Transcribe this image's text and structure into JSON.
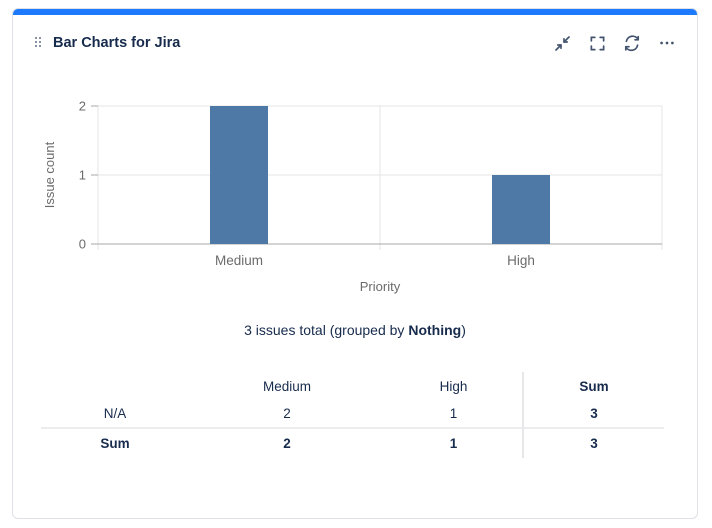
{
  "header": {
    "title": "Bar Charts for Jira",
    "actions": {
      "collapse": "Collapse",
      "fullscreen": "Full screen",
      "refresh": "Refresh",
      "more": "More options"
    }
  },
  "chart_data": {
    "type": "bar",
    "categories": [
      "Medium",
      "High"
    ],
    "values": [
      2,
      1
    ],
    "title": "",
    "xlabel": "Priority",
    "ylabel": "Issue count",
    "ylim": [
      0,
      2
    ],
    "yticks": [
      0,
      1,
      2
    ],
    "grid": true,
    "legend": false,
    "bar_color": "#4e79a7"
  },
  "summary": {
    "prefix": "3 issues total (grouped by ",
    "group_by": "Nothing",
    "suffix": ")"
  },
  "table": {
    "columns": [
      "",
      "Medium",
      "High",
      "Sum"
    ],
    "rows": [
      {
        "label": "N/A",
        "values": [
          "2",
          "1",
          "3"
        ]
      },
      {
        "label": "Sum",
        "values": [
          "2",
          "1",
          "3"
        ]
      }
    ]
  },
  "colors": {
    "accent": "#1d7afc",
    "bar": "#4e79a7",
    "text": "#172b4d",
    "icon": "#44546f",
    "chart_text": "#6b6b6b",
    "grid_line": "#e5e5e5",
    "axis_line": "#a9a9a9"
  }
}
